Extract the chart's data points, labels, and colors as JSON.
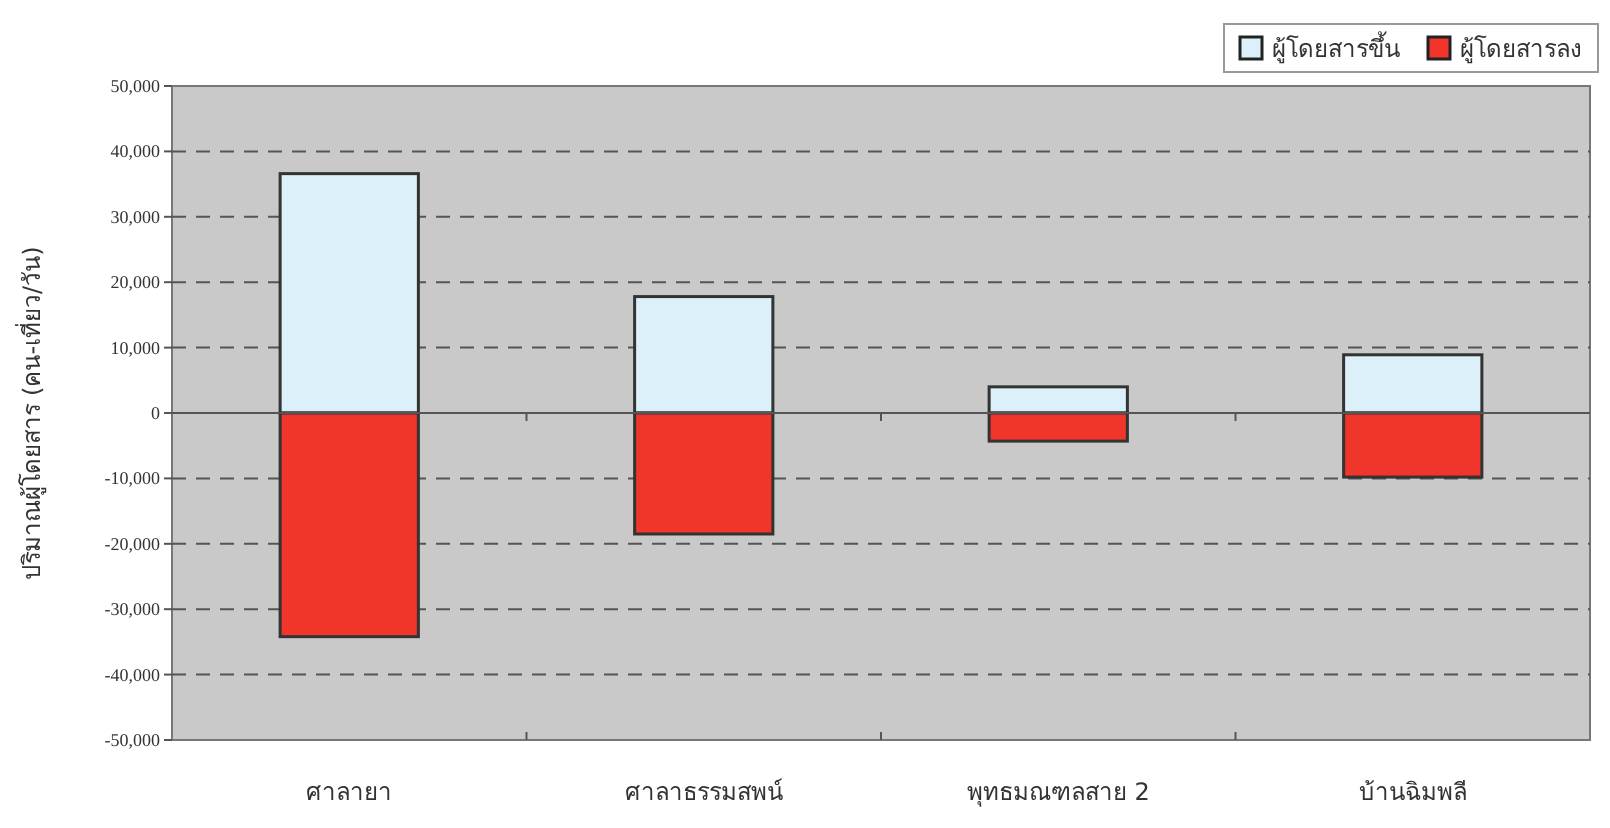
{
  "chart_data": {
    "type": "bar",
    "stacked": true,
    "ylabel": "ปริมาณผู้โดยสาร (คน-เที่ยว/วัน)",
    "categories": [
      "ศาลายา",
      "ศาลาธรรมสพน์",
      "พุทธมณฑลสาย 2",
      "บ้านฉิมพลี"
    ],
    "series": [
      {
        "name": "ผู้โดยสารขึ้น",
        "color": "#dcf0fa",
        "values": [
          36600,
          17800,
          4000,
          8900
        ]
      },
      {
        "name": "ผู้โดยสารลง",
        "color": "#f0352a",
        "values": [
          -34200,
          -18500,
          -4300,
          -9800
        ]
      }
    ],
    "ylim": [
      -50000,
      50000
    ],
    "yticks": [
      {
        "value": -50000,
        "label": "-50,000"
      },
      {
        "value": -40000,
        "label": "-40,000"
      },
      {
        "value": -30000,
        "label": "-30,000"
      },
      {
        "value": -20000,
        "label": "-20,000"
      },
      {
        "value": -10000,
        "label": "-10,000"
      },
      0,
      {
        "value": 10000,
        "label": "10,000"
      },
      {
        "value": 20000,
        "label": "20,000"
      },
      {
        "value": 30000,
        "label": "30,000"
      },
      {
        "value": 40000,
        "label": "40,000"
      },
      {
        "value": 50000,
        "label": "50,000"
      }
    ],
    "grid": "y",
    "legend": "top right"
  }
}
